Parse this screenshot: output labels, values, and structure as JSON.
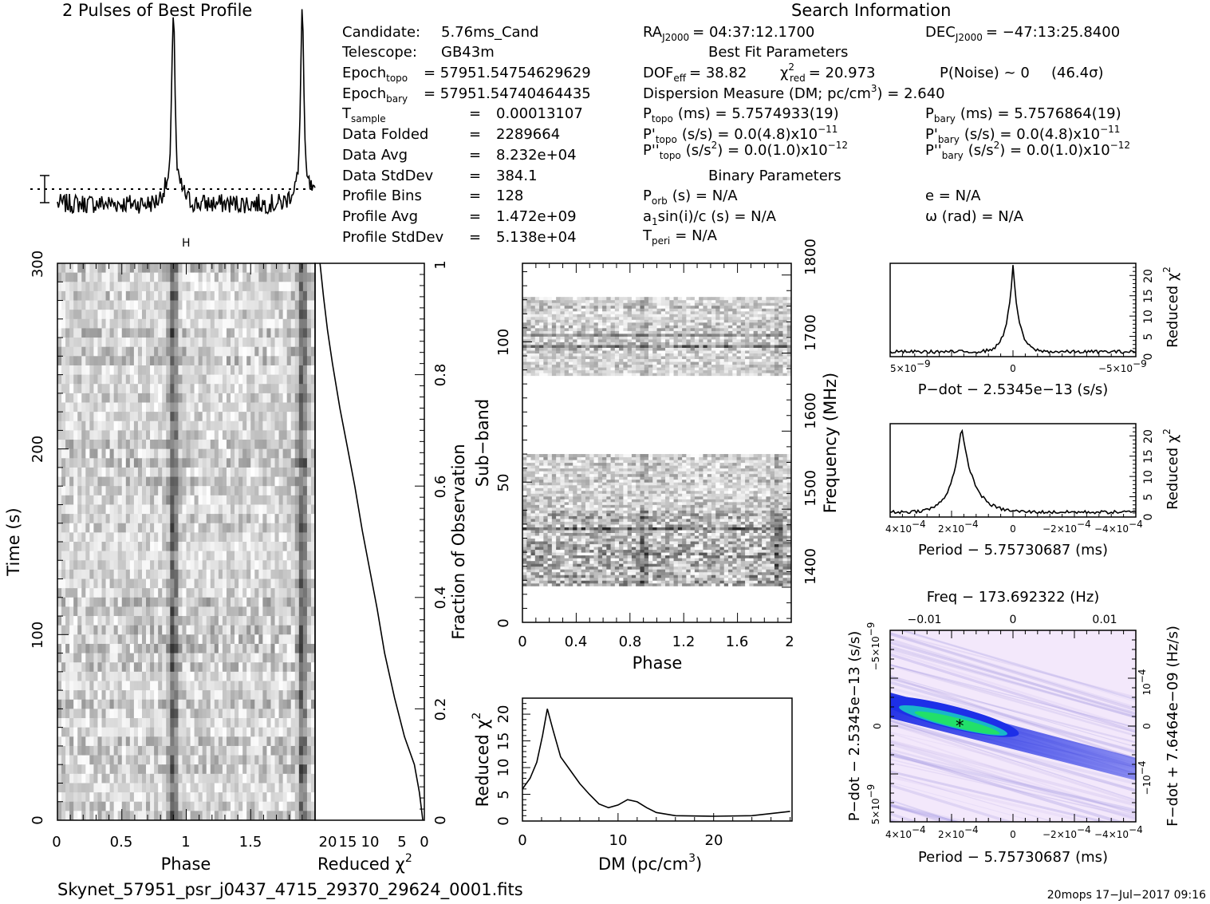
{
  "header": {
    "profile_title": "2 Pulses of Best Profile",
    "search_title": "Search Information",
    "best_fit_title": "Best Fit Parameters",
    "binary_title": "Binary Parameters"
  },
  "info_left": [
    {
      "label": "Candidate:",
      "value": "5.76ms_Cand"
    },
    {
      "label": "Telescope:",
      "value": "GB43m"
    },
    {
      "label": "Epoch",
      "sub": "topo",
      "value": "= 57951.54754629629"
    },
    {
      "label": "Epoch",
      "sub": "bary",
      "value": "= 57951.54740464435"
    },
    {
      "label": "T",
      "sub": "sample",
      "value": "0.00013107"
    },
    {
      "label": "Data Folded",
      "value": "2289664"
    },
    {
      "label": "Data Avg",
      "value": "8.232e+04"
    },
    {
      "label": "Data StdDev",
      "value": "384.1"
    },
    {
      "label": "Profile Bins",
      "value": "128"
    },
    {
      "label": "Profile Avg",
      "value": "1.472e+09"
    },
    {
      "label": "Profile StdDev",
      "value": "5.138e+04"
    }
  ],
  "search_info": {
    "ra_label": "RA",
    "ra_sub": "J2000",
    "ra_value": "= 04:37:12.1700",
    "dec_label": "DEC",
    "dec_sub": "J2000",
    "dec_value": "= −47:13:25.8400",
    "dof_label": "DOF",
    "dof_sub": "eff",
    "dof_value": "= 38.82",
    "chi_label": "χ",
    "chi_sup": "2",
    "chi_sub": "red",
    "chi_value": "= 20.973",
    "pnoise": "P(Noise) ~ 0",
    "sigma": "(46.4σ)",
    "dm_text": "Dispersion Measure (DM; pc/cm",
    "dm_sup": "3",
    "dm_value": ") = 2.640",
    "ptopo_label": "P",
    "ptopo_sub": "topo",
    "ptopo_value": "(ms) =  5.7574933(19)",
    "pbary_label": "P",
    "pbary_sub": "bary",
    "pbary_value": "(ms) =  5.7576864(19)",
    "pdtopo_label": "P'",
    "pdtopo_sub": "topo",
    "pdtopo_value": "(s/s) = 0.0(4.8)x10",
    "pdtopo_exp": "−11",
    "pdbary_label": "P'",
    "pdbary_sub": "bary",
    "pdbary_value": "(s/s) = 0.0(4.8)x10",
    "pdbary_exp": "−11",
    "pddtopo_label": "P''",
    "pddtopo_sub": "topo",
    "pddtopo_value": "(s/s",
    "pddtopo_sup": "2",
    "pddtopo_value2": ") = 0.0(1.0)x10",
    "pddtopo_exp": "−12",
    "pddbary_label": "P''",
    "pddbary_sub": "bary",
    "pddbary_value": "(s/s",
    "pddbary_sup": "2",
    "pddbary_value2": ") = 0.0(1.0)x10",
    "pddbary_exp": "−12",
    "porb_label": "P",
    "porb_sub": "orb",
    "porb_value": "(s) = N/A",
    "e_text": "e = N/A",
    "a1_label": "a",
    "a1_sub": "1",
    "a1_value": "sin(i)/c (s) = N/A",
    "omega_text": "ω (rad) = N/A",
    "tperi_label": "T",
    "tperi_sub": "peri",
    "tperi_value": "= N/A"
  },
  "footer": {
    "filename": "Skynet_57951_psr_j0437_4715_29370_29624_0001.fits",
    "stamp": "20mops 17−Jul−2017 09:16"
  },
  "chart_data": [
    {
      "id": "profile",
      "type": "line",
      "title": "2 Pulses of Best Profile",
      "x": "phase 0-2",
      "peaks": [
        {
          "x": 0.9,
          "y": 1.0
        },
        {
          "x": 1.9,
          "y": 1.0
        }
      ],
      "baseline": 0.0
    },
    {
      "id": "time-phase",
      "type": "heatmap",
      "xlabel": "Phase",
      "ylabel": "Time (s)",
      "xlim": [
        0,
        2
      ],
      "ylim": [
        0,
        300
      ],
      "xticks": [
        "0",
        "0.5",
        "1",
        "1.5"
      ],
      "yticks": [
        "0",
        "100",
        "200",
        "300"
      ],
      "pulse_phase": [
        0.9,
        1.9
      ]
    },
    {
      "id": "redchi-time",
      "type": "line",
      "xlabel": "Reduced χ",
      "xlabel_sup": "2",
      "ylabel_right": "Fraction of Observation",
      "xticks": [
        "20",
        "15",
        "10",
        "5",
        "0"
      ],
      "yticks": [
        "0",
        "0.2",
        "0.4",
        "0.6",
        "0.8",
        "1"
      ],
      "xlim": [
        22,
        0
      ],
      "ylim": [
        0,
        1
      ],
      "points": [
        [
          0.3,
          0.0
        ],
        [
          1,
          0.05
        ],
        [
          2,
          0.1
        ],
        [
          4,
          0.15
        ],
        [
          6,
          0.22
        ],
        [
          8,
          0.3
        ],
        [
          9.5,
          0.38
        ],
        [
          11,
          0.45
        ],
        [
          12.5,
          0.52
        ],
        [
          14,
          0.6
        ],
        [
          15.5,
          0.67
        ],
        [
          17,
          0.74
        ],
        [
          18.5,
          0.82
        ],
        [
          19.5,
          0.88
        ],
        [
          20.3,
          0.94
        ],
        [
          21,
          1.0
        ]
      ]
    },
    {
      "id": "subband-phase",
      "type": "heatmap",
      "xlabel": "Phase",
      "ylabel": "Sub−band",
      "ylabel_right": "Frequency (MHz)",
      "xticks": [
        "0",
        "0.4",
        "0.8",
        "1.2",
        "1.6",
        "2"
      ],
      "yticks": [
        "0",
        "50",
        "100"
      ],
      "freq_ticks": [
        "1400",
        "1500",
        "1600",
        "1700",
        "1800"
      ],
      "xlim": [
        0,
        2
      ],
      "ylim": [
        0,
        128
      ],
      "freq_lim": [
        1355,
        1815
      ],
      "data_bands": [
        [
          13,
          60
        ],
        [
          88,
          116
        ]
      ]
    },
    {
      "id": "dm",
      "type": "line",
      "xlabel": "DM (pc/cm",
      "xlabel_sup": "3",
      "ylabel": "Reduced χ",
      "ylabel_sup": "2",
      "xticks": [
        "0",
        "10",
        "20"
      ],
      "yticks": [
        "0",
        "5",
        "10",
        "15",
        "20"
      ],
      "xlim": [
        0,
        28.2
      ],
      "ylim": [
        0,
        23
      ],
      "points": [
        [
          0,
          6
        ],
        [
          0.8,
          8
        ],
        [
          1.5,
          11
        ],
        [
          2.1,
          16
        ],
        [
          2.6,
          21
        ],
        [
          3.2,
          17
        ],
        [
          4,
          12
        ],
        [
          5,
          9.5
        ],
        [
          6,
          7
        ],
        [
          7,
          5
        ],
        [
          8,
          3.2
        ],
        [
          9,
          2.5
        ],
        [
          10,
          3
        ],
        [
          11,
          4
        ],
        [
          12,
          3.6
        ],
        [
          13,
          2.5
        ],
        [
          14,
          1.6
        ],
        [
          16,
          1.0
        ],
        [
          20,
          0.9
        ],
        [
          24,
          1.0
        ],
        [
          28,
          1.8
        ]
      ]
    },
    {
      "id": "pdot",
      "type": "line",
      "xlabel": "P−dot − 2.5345e−13 (s/s)",
      "ylabel_right": "Reduced χ",
      "ylabel_sup": "2",
      "xticks_left": "5×10",
      "xticks_left_exp": "−9",
      "xticks_mid": "0",
      "xticks_right": "−5×10",
      "xticks_right_exp": "−9",
      "yticks": [
        "0",
        "5",
        "10",
        "15",
        "20"
      ],
      "ylim": [
        0,
        23
      ],
      "peak_x": 0,
      "peak_y": 21
    },
    {
      "id": "period",
      "type": "line",
      "xlabel": "Period − 5.75730687 (ms)",
      "ylabel_right": "Reduced χ",
      "ylabel_sup": "2",
      "xticks": [
        "4×10",
        "2×10",
        "0",
        "−2×10",
        "−4×10"
      ],
      "xticks_exp": "−4",
      "yticks": [
        "0",
        "5",
        "10",
        "15",
        "20"
      ],
      "ylim": [
        0,
        23
      ],
      "peak_x": 0.00019,
      "peak_y": 21
    },
    {
      "id": "ppdot",
      "type": "heatmap",
      "top_label": "Freq − 173.692322 (Hz)",
      "xlabel": "Period − 5.75730687 (ms)",
      "ylabel": "P−dot − 2.5345e−13 (s/s)",
      "ylabel_right": "F−dot + 7.6464e−09 (Hz/s)",
      "top_ticks": [
        "−0.01",
        "0",
        "0.01"
      ],
      "xticks": [
        "4×10",
        "2×10",
        "0",
        "−2×10",
        "−4×10"
      ],
      "xticks_exp": "−4",
      "yticks_left": [
        "−5×10",
        "0",
        "5×10"
      ],
      "yticks_left_exp": "−9",
      "yticks_right": [
        "10",
        "0",
        "−10"
      ],
      "yticks_right_exp": "−4",
      "best": {
        "period": 0.00019,
        "pdot": 0
      }
    }
  ],
  "colors": {
    "ink": "#000000",
    "ppdot_bg": "#f3e8fb",
    "ppdot_blue": "#1a2be0",
    "ppdot_green": "#22e06a"
  }
}
